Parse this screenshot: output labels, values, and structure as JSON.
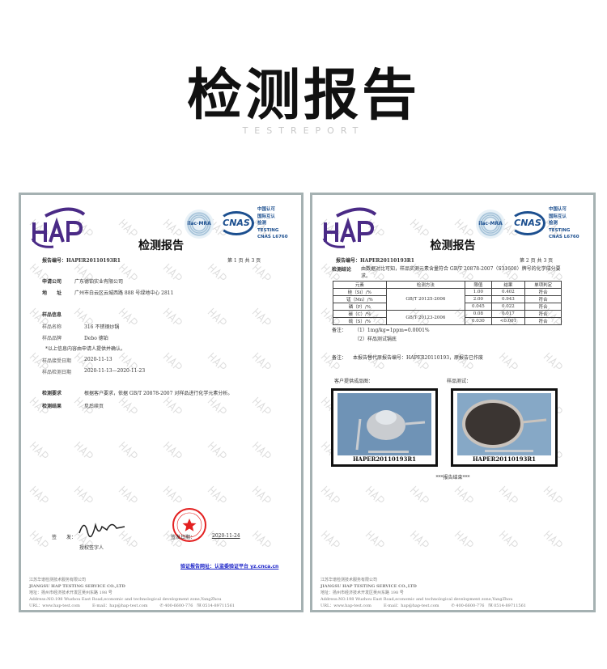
{
  "header": {
    "title": "检测报告",
    "subtitle": "TESTREPORT"
  },
  "watermark": "HAP",
  "logos": {
    "hap": "HAP",
    "ilac": "ilac-MRA",
    "cnas": "CNAS",
    "accreditation": [
      "中国认可",
      "国际互认",
      "检测",
      "TESTING",
      "CNAS L6760"
    ]
  },
  "colors": {
    "brand_purple": "#4a2a86",
    "cnas_blue": "#1c4f8f",
    "seal_red": "#e32020",
    "link_blue": "#1a22c8"
  },
  "page1": {
    "title": "检测报告",
    "report_no_label": "报告编号：",
    "report_no": "HAPER20110193R1",
    "page_info": "第 1 页 共 3 页",
    "applicant_label": "申请公司",
    "applicant": "广东德铂实业有限公司",
    "address_label": "地　　址",
    "address": "广州市白云区云城西路 888 号绿地中心 2811",
    "sample_info_label": "样品信息",
    "sample_name_label": "样品名称",
    "sample_name": "316 不锈钢炒锅",
    "brand_label": "样品品牌",
    "brand": "Debo 德铂",
    "note": "*以上信息内容由申请人提供并确认。",
    "received_label": "样品接受日期",
    "received": "2020-11-13",
    "tested_label": "样品检测日期",
    "tested": "2020-11-13—2020-11-23",
    "requirement_label": "检测要求",
    "requirement": "根据客户要求，依据 GB/T 20878-2007 对样品进行化学元素分析。",
    "result_label": "检测结果",
    "result": "见后续页",
    "sign_label": "签　　发：",
    "signer_label": "授权签字人",
    "sign_date_label": "签发日期：",
    "sign_date": "2020-11-24",
    "verify": "验证报告网址：认监委验证平台 yz.cnca.cn"
  },
  "page2": {
    "title": "检测报告",
    "report_no_label": "报告编号：",
    "report_no": "HAPER20110193R1",
    "page_info": "第 2 页 共 3 页",
    "conclusion_label": "检测结论",
    "conclusion": "由数据对比可知，样品实测元素含量符合 GB/T 20878-2007（S31608）牌号的化学成分要求。",
    "table": {
      "headers": [
        "元素",
        "检测方法",
        "限值",
        "结果",
        "单项判定"
      ],
      "rows": [
        {
          "element": "硅（Si）/%",
          "method": "GB/T 20125-2006",
          "limit": "1.00",
          "result": "0.402",
          "verdict": "符合"
        },
        {
          "element": "锰（Mn）/%",
          "method": "GB/T 20125-2006",
          "limit": "2.00",
          "result": "0.943",
          "verdict": "符合"
        },
        {
          "element": "磷（P）/%",
          "method": "GB/T 20125-2006",
          "limit": "0.045",
          "result": "0.022",
          "verdict": "符合"
        },
        {
          "element": "碳（C）/%",
          "method": "GB/T 20123-2006",
          "limit": "0.08",
          "result": "0.017",
          "verdict": "符合"
        },
        {
          "element": "硫（S）/%",
          "method": "GB/T 20123-2006",
          "limit": "0.030",
          "result": "<0.001",
          "verdict": "符合"
        }
      ]
    },
    "notes_label": "备注：",
    "notes": [
      "（1）1mg/kg=1ppm=0.0001%",
      "（2）样品测试锅底"
    ],
    "remark_label": "备注：",
    "remark": "本报告替代原报告编号：HAPER20110193，原报告已作废",
    "photo1_label": "客户提供成品图：",
    "photo2_label": "样品测试：",
    "photo_caption": "HAPER20110193R1",
    "end": "***报告结束***"
  },
  "footer": {
    "company_cn": "江苏华谱检测技术服务有限公司",
    "company_en": "JIANGSU HAP TESTING SERVICE CO.,LTD",
    "address_cn": "地址：扬州市经济技术开发区吴州东路 198 号",
    "address_en": "Address:NO.198 Wuzhou East Road,economic and technological development zone,YangZhou",
    "url": "URL：www.hap-test.com",
    "email": "E-mail：hap@hap-test.com",
    "phone": "400-6600-776",
    "fax": "0514-89711561"
  }
}
